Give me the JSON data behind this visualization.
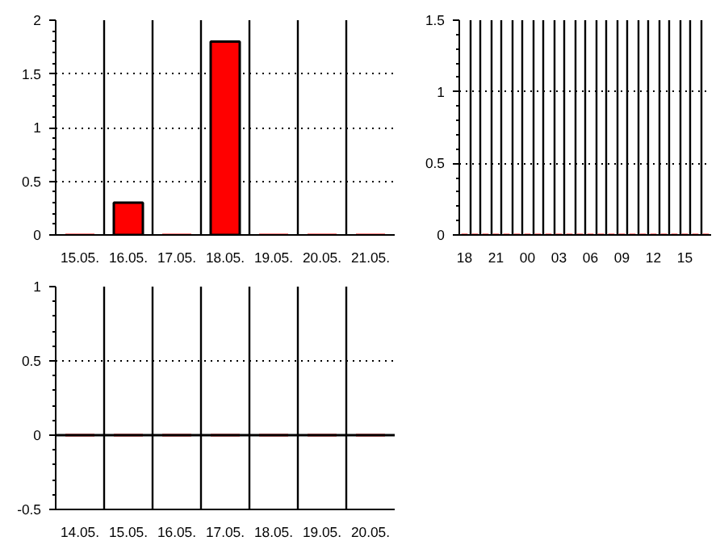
{
  "chart_data": [
    {
      "type": "bar",
      "categories": [
        "15.05.",
        "16.05.",
        "17.05.",
        "18.05.",
        "19.05.",
        "20.05.",
        "21.05."
      ],
      "values": [
        0,
        0.3,
        0,
        1.8,
        0,
        0,
        0
      ],
      "color": "#ff0000",
      "ylim": [
        0,
        2
      ],
      "yticks": [
        0,
        0.5,
        1,
        1.5,
        2
      ],
      "grid": true
    },
    {
      "type": "bar",
      "categories": [
        "18",
        null,
        null,
        "21",
        null,
        null,
        "00",
        null,
        null,
        "03",
        null,
        null,
        "06",
        null,
        null,
        "09",
        null,
        null,
        "12",
        null,
        null,
        "15",
        null,
        null
      ],
      "values": [
        0,
        0,
        0,
        0,
        0,
        0,
        0,
        0,
        0,
        0,
        0,
        0,
        0,
        0,
        0,
        0,
        0,
        0,
        0,
        0,
        0,
        0,
        0,
        0
      ],
      "color": "#ff0000",
      "ylim": [
        0,
        1.5
      ],
      "yticks": [
        0,
        0.5,
        1,
        1.5
      ],
      "grid": true
    },
    {
      "type": "bar",
      "categories": [
        "14.05.",
        "15.05.",
        "16.05.",
        "17.05.",
        "18.05.",
        "19.05.",
        "20.05."
      ],
      "values": [
        0,
        0,
        0,
        0,
        0,
        0,
        0
      ],
      "color": "#ff0000",
      "ylim": [
        -0.5,
        1
      ],
      "yticks": [
        -0.5,
        0,
        0.5,
        1
      ],
      "grid": true,
      "ref_lines": [
        {
          "axis": "y",
          "value": 0,
          "color": "#000000"
        }
      ]
    }
  ]
}
